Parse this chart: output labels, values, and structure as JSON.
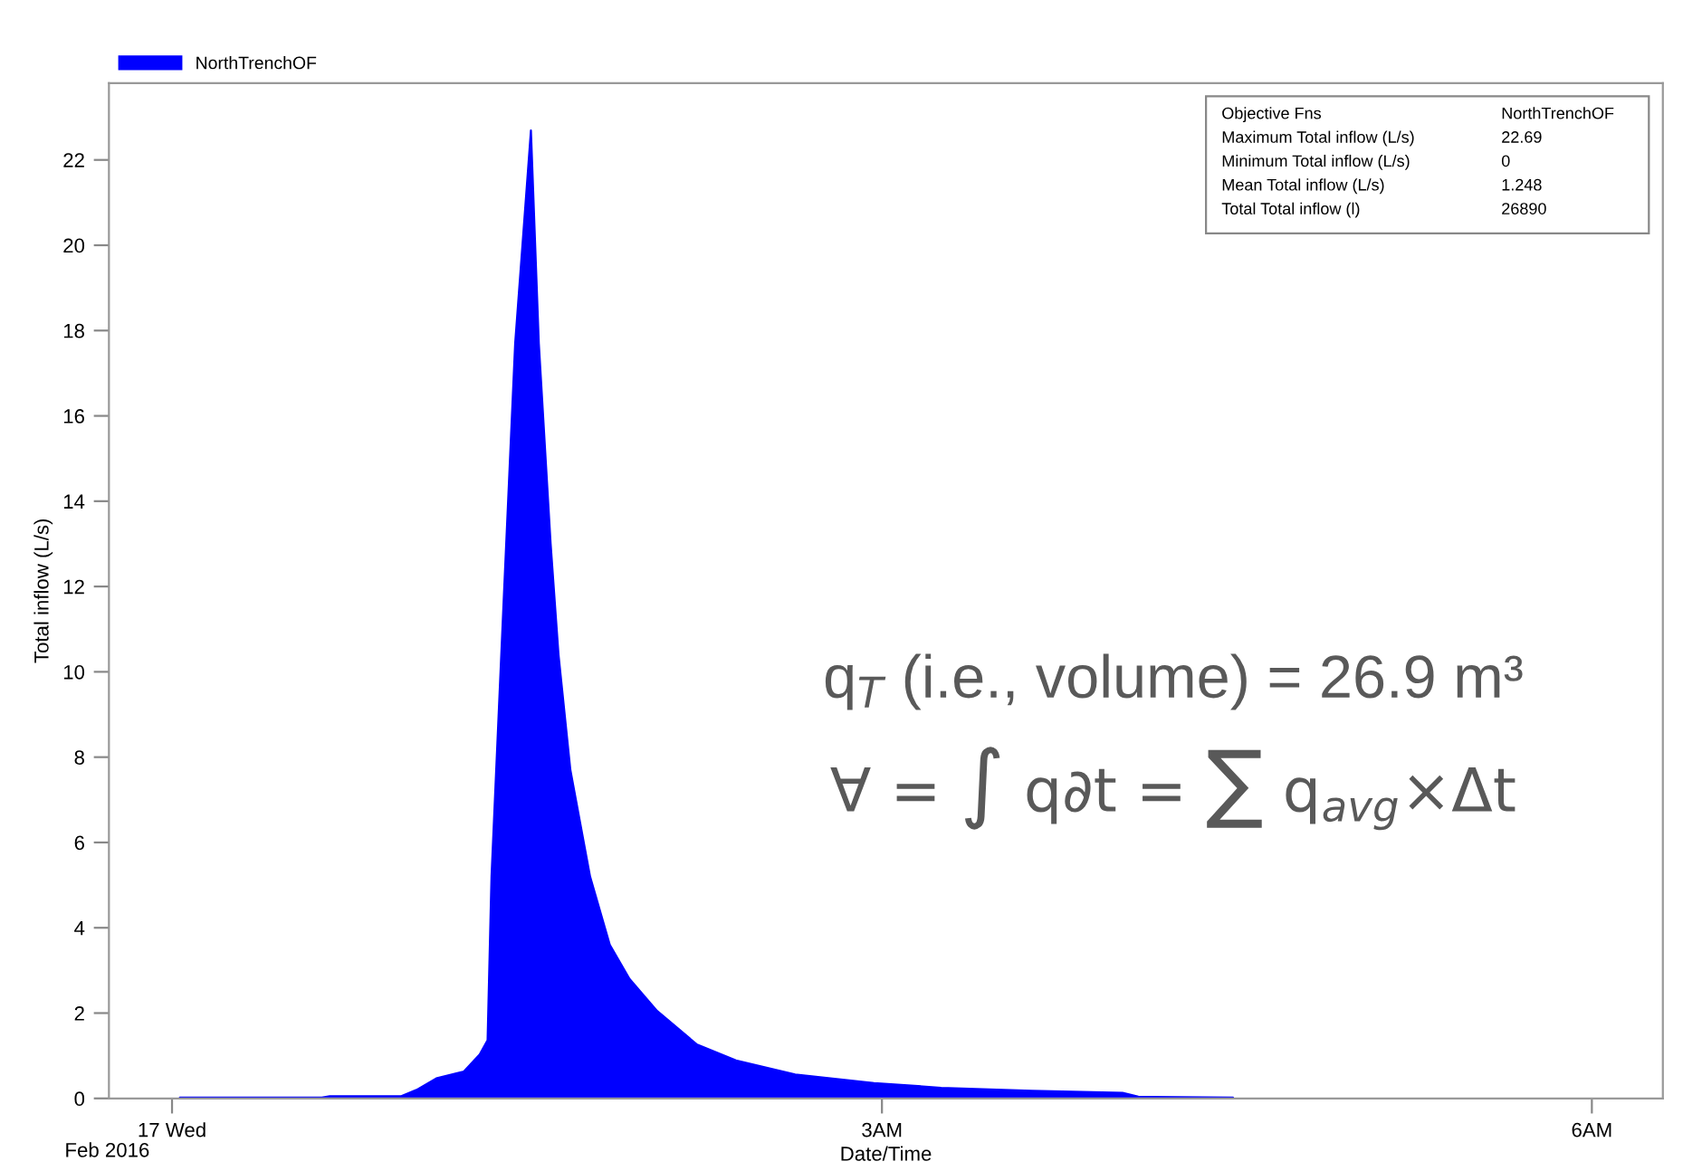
{
  "chart_data": {
    "type": "area",
    "xlabel": "Date/Time",
    "ylabel": "Total inflow (L/s)",
    "x": [
      "2016-02-17T00:02",
      "2016-02-17T00:38",
      "2016-02-17T00:40",
      "2016-02-17T00:58",
      "2016-02-17T01:02",
      "2016-02-17T01:07",
      "2016-02-17T01:14",
      "2016-02-17T01:18",
      "2016-02-17T01:20",
      "2016-02-17T01:21",
      "2016-02-17T01:24",
      "2016-02-17T01:27",
      "2016-02-17T01:31",
      "2016-02-17T01:33",
      "2016-02-17T01:36",
      "2016-02-17T01:38",
      "2016-02-17T01:41",
      "2016-02-17T01:46",
      "2016-02-17T01:51",
      "2016-02-17T01:56",
      "2016-02-17T02:03",
      "2016-02-17T02:13",
      "2016-02-17T02:23",
      "2016-02-17T02:38",
      "2016-02-17T02:58",
      "2016-02-17T03:15",
      "2016-02-17T03:38",
      "2016-02-17T04:01",
      "2016-02-17T04:05",
      "2016-02-17T04:29"
    ],
    "series": [
      {
        "name": "NorthTrenchOF",
        "color": "#0000ff",
        "values": [
          0.02,
          0.02,
          0.05,
          0.05,
          0.2,
          0.47,
          0.63,
          1.03,
          1.36,
          5.2,
          11.5,
          17.7,
          22.69,
          17.7,
          13.0,
          10.4,
          7.7,
          5.2,
          3.6,
          2.8,
          2.05,
          1.27,
          0.89,
          0.56,
          0.36,
          0.25,
          0.18,
          0.13,
          0.04,
          0.02
        ]
      }
    ],
    "xlim": [
      "2016-02-16T23:44",
      "2016-02-17T06:18"
    ],
    "xticks": [
      {
        "value": "2016-02-17T00:00",
        "label": "17 Wed"
      },
      {
        "value": "2016-02-17T03:00",
        "label": "3AM"
      },
      {
        "value": "2016-02-17T06:00",
        "label": "6AM"
      }
    ],
    "ylim": [
      0,
      23.8
    ],
    "yticks": [
      0,
      2,
      4,
      6,
      8,
      10,
      12,
      14,
      16,
      18,
      20,
      22
    ],
    "grid": false,
    "legend": "top left",
    "annotations": [
      "Objective Fns",
      "NorthTrenchOF",
      "Maximum Total inflow (L/s)",
      "22.69",
      "Minimum Total inflow (L/s)",
      "0",
      "Mean Total inflow (L/s)",
      "1.248",
      "Total Total inflow (l)",
      "26890",
      "q$_{T}$ (i.e., volume) = 26.9 m³",
      "∀ = ∫ q∂t = ∑ q$_{avg}$×Δt",
      "Feb 2016"
    ]
  }
}
